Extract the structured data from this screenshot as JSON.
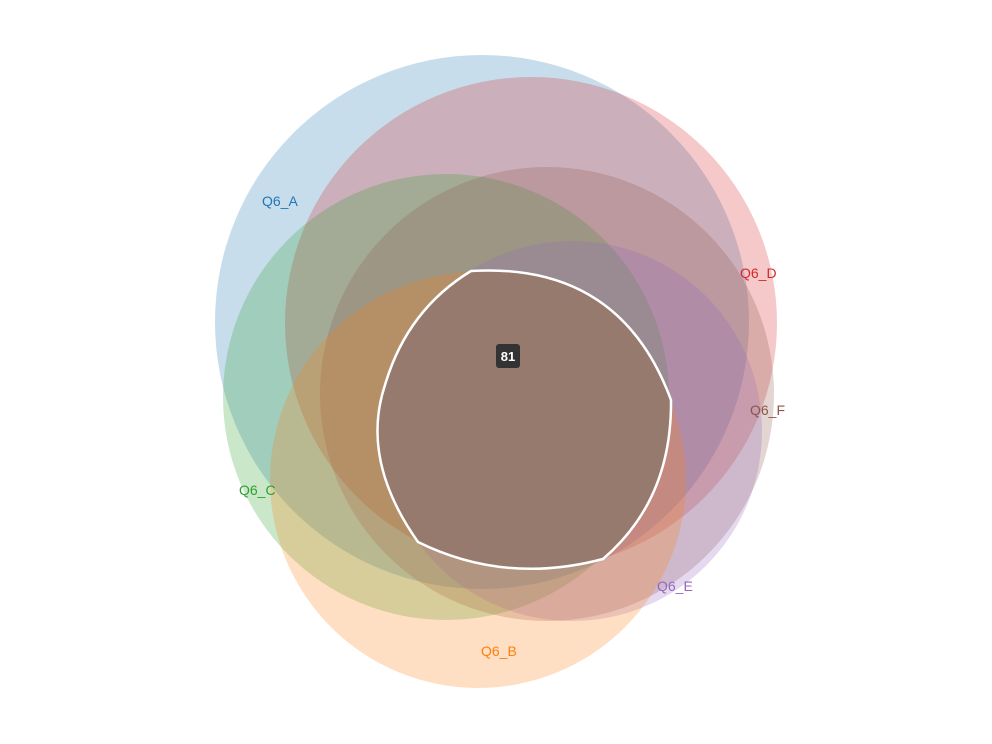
{
  "diagram": {
    "type": "venn",
    "sets": [
      {
        "id": "a",
        "label": "Q6_A",
        "color": "#1f77b4"
      },
      {
        "id": "b",
        "label": "Q6_B",
        "color": "#ff7f0e"
      },
      {
        "id": "c",
        "label": "Q6_C",
        "color": "#2ca02c"
      },
      {
        "id": "d",
        "label": "Q6_D",
        "color": "#d62728"
      },
      {
        "id": "e",
        "label": "Q6_E",
        "color": "#9467bd"
      },
      {
        "id": "f",
        "label": "Q6_F",
        "color": "#8c564b"
      }
    ],
    "highlighted_region": {
      "sets": [
        "Q6_A",
        "Q6_B",
        "Q6_C",
        "Q6_D",
        "Q6_E",
        "Q6_F"
      ],
      "count": "81",
      "fill_color": "#967a6e",
      "outline_color": "#ffffff"
    }
  }
}
